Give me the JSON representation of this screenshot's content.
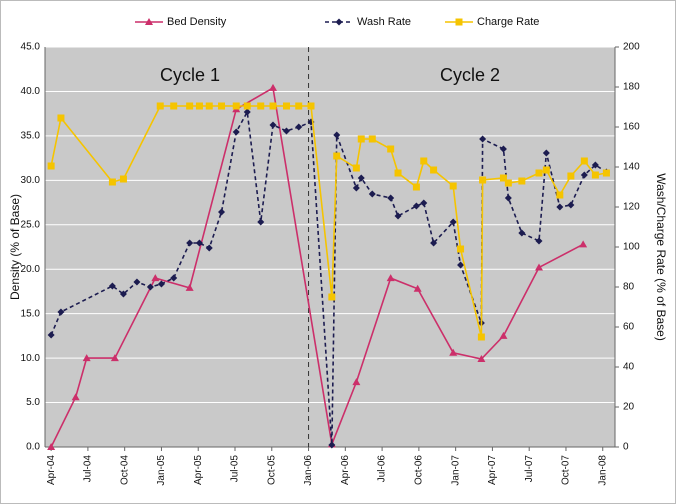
{
  "chart_data": {
    "type": "line",
    "y_label": "Density (% of Base)",
    "y2_label": "Wash/Charge Rate (% of Base)",
    "annotations": [
      "Cycle 1",
      "Cycle 2"
    ],
    "xlim": [
      -0.5,
      46
    ],
    "xticks": [
      {
        "value": 0,
        "label": "Apr-04"
      },
      {
        "value": 3,
        "label": "Jul-04"
      },
      {
        "value": 6,
        "label": "Oct-04"
      },
      {
        "value": 9,
        "label": "Jan-05"
      },
      {
        "value": 12,
        "label": "Apr-05"
      },
      {
        "value": 15,
        "label": "Jul-05"
      },
      {
        "value": 18,
        "label": "Oct-05"
      },
      {
        "value": 21,
        "label": "Jan-06"
      },
      {
        "value": 24,
        "label": "Apr-06"
      },
      {
        "value": 27,
        "label": "Jul-06"
      },
      {
        "value": 30,
        "label": "Oct-06"
      },
      {
        "value": 33,
        "label": "Jan-07"
      },
      {
        "value": 36,
        "label": "Apr-07"
      },
      {
        "value": 39,
        "label": "Jul-07"
      },
      {
        "value": 42,
        "label": "Oct-07"
      },
      {
        "value": 45,
        "label": "Jan-08"
      }
    ],
    "ylim": [
      0,
      45
    ],
    "yticks": [
      {
        "value": 0,
        "label": "0.0"
      },
      {
        "value": 5,
        "label": "5.0"
      },
      {
        "value": 10,
        "label": "10.0"
      },
      {
        "value": 15,
        "label": "15.0"
      },
      {
        "value": 20,
        "label": "20.0"
      },
      {
        "value": 25,
        "label": "25.0"
      },
      {
        "value": 30,
        "label": "30.0"
      },
      {
        "value": 35,
        "label": "35.0"
      },
      {
        "value": 40,
        "label": "40.0"
      },
      {
        "value": 45,
        "label": "45.0"
      }
    ],
    "y2lim": [
      0,
      200
    ],
    "y2ticks": [
      0,
      20,
      40,
      60,
      80,
      100,
      120,
      140,
      160,
      180,
      200
    ],
    "grid": true,
    "legend": "top",
    "series": [
      {
        "name": "Bed Density",
        "color": "#cc2f6a",
        "marker": "triangle",
        "dash": false,
        "x": [
          0,
          2.0,
          2.9,
          5.2,
          8.5,
          11.3,
          15.1,
          18.1,
          22.9,
          24.9,
          27.7,
          29.9,
          32.8,
          35.1,
          36.9,
          39.8,
          43.4
        ],
        "values": [
          0,
          5.6,
          10,
          10,
          19,
          17.9,
          38,
          40.4,
          0.3,
          7.3,
          19,
          17.8,
          10.6,
          9.9,
          12.5,
          20.2,
          22.8
        ]
      },
      {
        "name": "Wash Rate",
        "color": "#1c1c50",
        "marker": "diamond",
        "dash": true,
        "axis": "y2",
        "x": [
          0,
          0.8,
          5.0,
          5.9,
          7.0,
          8.1,
          9.0,
          10.0,
          11.3,
          12.1,
          12.9,
          13.9,
          15.1,
          16.0,
          17.1,
          18.1,
          19.2,
          20.2,
          21.2,
          22.9,
          23.3,
          24.9,
          25.3,
          26.2,
          27.7,
          28.3,
          29.8,
          30.4,
          31.2,
          32.8,
          33.4,
          35.1,
          35.2,
          36.9,
          37.3,
          38.4,
          39.8,
          40.4,
          41.5,
          42.4,
          43.5,
          44.4,
          45.3
        ],
        "values": [
          56,
          67.5,
          80.5,
          76.5,
          82.5,
          80,
          81.5,
          84.5,
          102,
          102,
          99.5,
          117.5,
          157.5,
          167.5,
          112.5,
          161,
          158,
          160,
          162.5,
          1,
          156,
          129.5,
          134.5,
          126.5,
          124.5,
          115.5,
          120.5,
          122,
          102,
          112.5,
          91,
          62,
          154,
          149,
          124.5,
          107,
          103,
          147,
          120,
          121,
          136,
          141,
          137.5
        ]
      },
      {
        "name": "Charge Rate",
        "color": "#f5c400",
        "marker": "square",
        "dash": false,
        "axis": "y2",
        "x": [
          0,
          0.8,
          5.0,
          5.9,
          8.9,
          10.0,
          11.3,
          12.1,
          12.9,
          13.9,
          15.1,
          16.0,
          17.1,
          18.1,
          19.2,
          20.2,
          21.2,
          22.9,
          23.3,
          24.9,
          25.3,
          26.2,
          27.7,
          28.3,
          29.8,
          30.4,
          31.2,
          32.8,
          33.4,
          35.1,
          35.2,
          36.9,
          37.3,
          38.4,
          39.8,
          40.4,
          41.5,
          42.4,
          43.5,
          44.4,
          45.3
        ],
        "values": [
          140.5,
          164.5,
          132.5,
          134,
          170.5,
          170.5,
          170.5,
          170.5,
          170.5,
          170.5,
          170.5,
          170.5,
          170.5,
          170.5,
          170.5,
          170.5,
          170.5,
          75,
          145.5,
          139.5,
          154,
          154,
          149,
          137,
          130,
          143,
          138.5,
          130.5,
          99,
          55,
          133.5,
          134.5,
          132,
          133,
          137,
          138.5,
          126,
          135.5,
          143,
          136,
          137
        ]
      }
    ]
  }
}
